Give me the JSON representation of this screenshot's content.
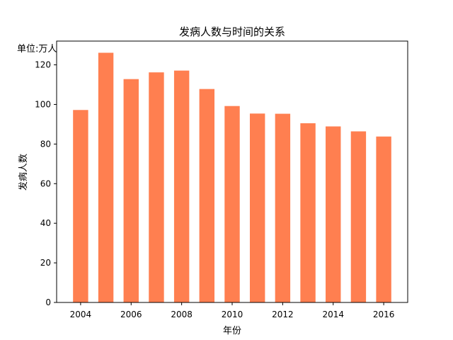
{
  "chart_data": {
    "type": "bar",
    "title": "发病人数与时间的关系",
    "unit_label": "单位:万人",
    "xlabel": "年份",
    "ylabel": "发病人数",
    "categories": [
      "2004",
      "2005",
      "2006",
      "2007",
      "2008",
      "2009",
      "2010",
      "2011",
      "2012",
      "2013",
      "2014",
      "2015",
      "2016"
    ],
    "values": [
      97.2,
      126.1,
      112.8,
      116.2,
      117.1,
      107.8,
      99.2,
      95.4,
      95.3,
      90.5,
      88.9,
      86.4,
      83.8
    ],
    "x_ticks": [
      "2004",
      "2006",
      "2008",
      "2010",
      "2012",
      "2014",
      "2016"
    ],
    "y_ticks": [
      "0",
      "20",
      "40",
      "60",
      "80",
      "100",
      "120"
    ],
    "ylim": [
      0,
      132
    ],
    "bar_color": "#ff7f50",
    "grid": false
  }
}
